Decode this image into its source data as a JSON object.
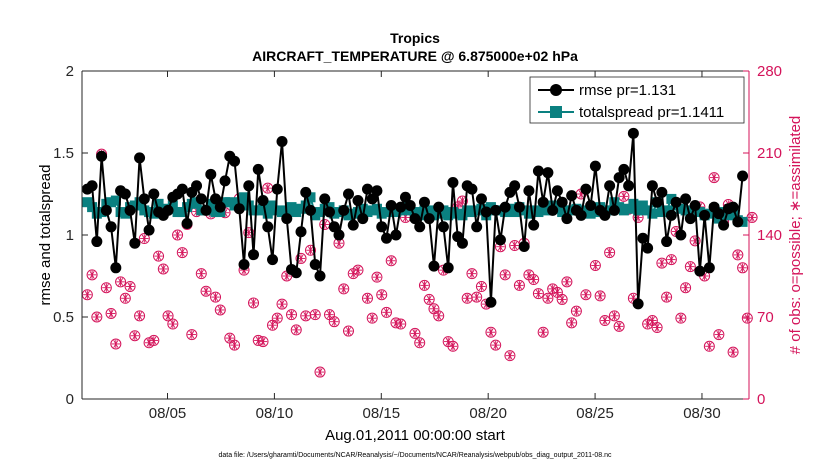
{
  "chart_data": {
    "type": "line",
    "title": "Tropics",
    "subtitle": "AIRCRAFT_TEMPERATURE @ 6.875000e+02 hPa",
    "xlabel": "Aug.01,2011 00:00:00 start",
    "ylabel_left": "rmse and totalspread",
    "ylabel_right": "# of obs: o=possible; ∗=assimilated",
    "footnote": "data file: /Users/gharamti/Documents/NCAR/Reanalysis/~/Documents/NCAR/Reanalysis/webpub/obs_diag_output_2011-08.nc",
    "xlim": [
      1.0,
      32.2
    ],
    "ylim_left": [
      0,
      2
    ],
    "ylim_right": [
      0,
      280
    ],
    "x_ticks": [
      5,
      10,
      15,
      20,
      25,
      30
    ],
    "x_tick_labels": [
      "08/05",
      "08/10",
      "08/15",
      "08/20",
      "08/25",
      "08/30"
    ],
    "y_left_ticks": [
      0,
      0.5,
      1,
      1.5,
      2
    ],
    "y_left_tick_labels": [
      "0",
      "0.5",
      "1",
      "1.5",
      "2"
    ],
    "y_right_ticks": [
      0,
      70,
      140,
      210,
      280
    ],
    "y_right_tick_labels": [
      "0",
      "70",
      "140",
      "210",
      "280"
    ],
    "legend": [
      "rmse pr=1.131",
      "totalspread pr=1.1411"
    ],
    "colors": {
      "rmse": "#000000",
      "spread": "#0a8080",
      "obs": "#d4135a",
      "axis": "#262626"
    },
    "series": [
      {
        "name": "rmse pr=1.131",
        "axis": "left",
        "values": [
          1.28,
          1.3,
          0.96,
          1.48,
          1.15,
          1.05,
          0.8,
          1.27,
          1.25,
          1.15,
          0.95,
          1.47,
          1.22,
          1.03,
          1.25,
          1.14,
          1.12,
          1.15,
          1.23,
          1.25,
          1.28,
          1.07,
          1.26,
          1.3,
          1.22,
          1.15,
          1.37,
          1.22,
          1.17,
          1.33,
          1.48,
          1.45,
          1.16,
          0.82,
          1.3,
          0.88,
          1.4,
          1.21,
          1.05,
          0.85,
          1.28,
          1.57,
          1.1,
          0.79,
          0.77,
          1.02,
          1.26,
          1.15,
          0.82,
          0.75,
          1.22,
          1.14,
          1.05,
          1.0,
          1.15,
          1.25,
          1.06,
          1.21,
          1.1,
          1.28,
          1.22,
          1.27,
          1.05,
          0.98,
          1.18,
          1.0,
          1.17,
          1.23,
          1.18,
          1.1,
          1.05,
          1.2,
          1.1,
          0.81,
          1.17,
          1.05,
          0.8,
          1.32,
          0.99,
          0.95,
          1.3,
          1.28,
          1.05,
          1.22,
          1.14,
          0.59,
          1.15,
          0.97,
          1.17,
          1.26,
          1.3,
          1.17,
          0.93,
          1.27,
          1.06,
          1.39,
          1.2,
          1.38,
          1.15,
          1.27,
          1.2,
          1.1,
          1.24,
          1.15,
          1.12,
          1.28,
          1.18,
          1.42,
          1.15,
          1.12,
          1.3,
          1.15,
          1.35,
          1.4,
          1.3,
          1.62,
          0.58,
          0.98,
          0.92,
          1.3,
          1.2,
          1.26,
          0.96,
          1.12,
          1.2,
          1.0,
          1.22,
          1.1,
          1.18,
          0.78,
          1.12,
          0.8,
          1.17,
          1.13,
          1.06,
          1.16,
          1.17,
          1.08,
          1.36
        ]
      },
      {
        "name": "totalspread pr=1.1411",
        "axis": "left",
        "values": [
          1.2,
          1.17,
          1.13,
          1.14,
          1.19,
          1.2,
          1.21,
          1.14,
          1.13,
          1.17,
          1.18,
          1.2,
          1.15,
          1.14,
          1.13,
          1.19,
          1.15,
          1.16,
          1.18,
          1.14,
          1.14,
          1.17,
          1.19,
          1.2,
          1.15,
          1.15,
          1.19,
          1.14,
          1.14,
          1.2,
          1.2,
          1.18,
          1.2,
          1.23,
          1.18,
          1.15,
          1.15,
          1.16,
          1.13,
          1.18,
          1.15,
          1.14,
          1.15,
          1.17,
          1.14,
          1.16,
          1.18,
          1.23,
          1.12,
          1.14,
          1.16,
          1.17,
          1.13,
          1.14,
          1.15,
          1.12,
          1.13,
          1.14,
          1.16,
          1.14,
          1.15,
          1.16,
          1.13,
          1.14,
          1.15,
          1.14,
          1.15,
          1.17,
          1.15,
          1.14,
          1.12,
          1.15,
          1.15,
          1.12,
          1.13,
          1.15,
          1.12,
          1.14,
          1.13,
          1.12,
          1.15,
          1.14,
          1.15,
          1.16,
          1.12,
          1.17,
          1.15,
          1.15,
          1.14,
          1.16,
          1.14,
          1.17,
          1.15,
          1.13,
          1.15,
          1.14,
          1.16,
          1.15,
          1.18,
          1.16,
          1.14,
          1.15,
          1.15,
          1.16,
          1.14,
          1.15,
          1.13,
          1.14,
          1.17,
          1.15,
          1.15,
          1.2,
          1.17,
          1.15,
          1.16,
          1.19,
          1.15,
          1.18,
          1.15,
          1.13,
          1.2,
          1.14,
          1.15,
          1.22,
          1.18,
          1.16,
          1.15,
          1.14,
          1.16,
          1.14,
          1.12,
          1.13,
          1.16,
          1.1,
          1.14,
          1.12,
          1.13,
          1.09,
          1.08
        ]
      },
      {
        "name": "# of obs",
        "axis": "right",
        "values": [
          89,
          106,
          70,
          209,
          95,
          73,
          47,
          100,
          86,
          96,
          54,
          71,
          137,
          48,
          50,
          122,
          111,
          71,
          64,
          140,
          125,
          149,
          55,
          160,
          107,
          92,
          158,
          87,
          76,
          159,
          52,
          46,
          171,
          110,
          142,
          82,
          50,
          49,
          180,
          63,
          69,
          81,
          105,
          72,
          59,
          120,
          71,
          127,
          72,
          23,
          149,
          72,
          66,
          133,
          94,
          58,
          107,
          110,
          155,
          86,
          69,
          104,
          89,
          74,
          118,
          65,
          64,
          155,
          162,
          56,
          48,
          97,
          85,
          77,
          71,
          110,
          49,
          45,
          164,
          169,
          86,
          107,
          87,
          96,
          81,
          57,
          46,
          130,
          106,
          37,
          131,
          97,
          133,
          106,
          102,
          90,
          57,
          86,
          94,
          91,
          85,
          100,
          65,
          75,
          175,
          89,
          160,
          114,
          88,
          67,
          125,
          71,
          62,
          173,
          162,
          86,
          155,
          163,
          64,
          67,
          61,
          116,
          87,
          119,
          143,
          69,
          95,
          113,
          135,
          164,
          105,
          45,
          189,
          55,
          152,
          166,
          40,
          123,
          112,
          69,
          155
        ]
      }
    ]
  }
}
